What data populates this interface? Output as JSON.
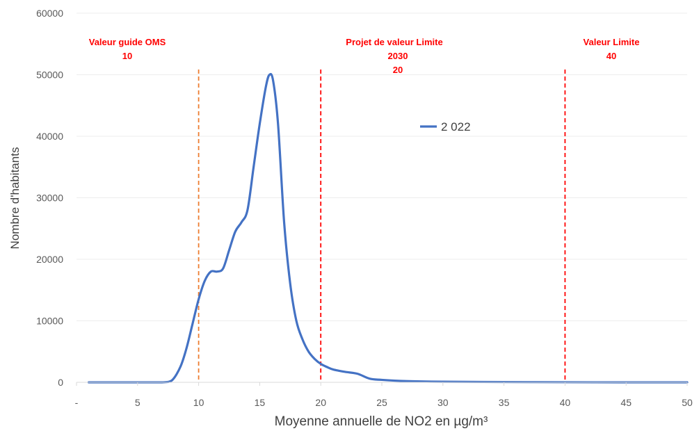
{
  "chart_data": {
    "type": "line",
    "title": "",
    "xlabel": "Moyenne annuelle de NO2 en µg/m³",
    "ylabel": "Nombre d'habitants",
    "xlim": [
      0,
      50
    ],
    "ylim": [
      0,
      60000
    ],
    "x_ticks": [
      "-",
      "5",
      "10",
      "15",
      "20",
      "25",
      "30",
      "35",
      "40",
      "45",
      "50"
    ],
    "y_ticks": [
      "0",
      "10000",
      "20000",
      "30000",
      "40000",
      "50000",
      "60000"
    ],
    "grid": true,
    "legend": {
      "position": "top-right",
      "entries": [
        "2 022"
      ]
    },
    "series": [
      {
        "name": "2 022",
        "color": "#4472c4",
        "x": [
          1,
          5,
          7,
          7.8,
          8.5,
          9,
          9.5,
          10,
          10.5,
          11,
          11.5,
          12,
          12.5,
          13,
          13.5,
          14,
          14.5,
          15,
          15.5,
          15.8,
          16.1,
          16.5,
          17,
          17.5,
          18,
          18.5,
          19,
          19.5,
          20,
          20.5,
          21,
          22,
          23,
          24,
          25,
          27,
          30,
          35,
          40,
          45,
          50
        ],
        "y": [
          0,
          0,
          0,
          300,
          2500,
          5500,
          9500,
          13500,
          16500,
          18000,
          18000,
          18500,
          21500,
          24500,
          26000,
          28000,
          35000,
          42000,
          48000,
          50000,
          49000,
          42000,
          26000,
          16000,
          10000,
          7000,
          5000,
          3800,
          3000,
          2500,
          2100,
          1700,
          1400,
          600,
          400,
          200,
          100,
          50,
          20,
          0,
          0
        ]
      }
    ],
    "reference_lines": [
      {
        "x": 10,
        "color": "#ed7d31",
        "label_lines": [
          "Valeur guide OMS",
          "10"
        ]
      },
      {
        "x": 20,
        "color": "#ff0000",
        "label_lines": [
          "Projet de valeur Limite",
          "2030",
          "20"
        ]
      },
      {
        "x": 40,
        "color": "#ff0000",
        "label_lines": [
          "Valeur Limite",
          "40"
        ]
      }
    ]
  }
}
